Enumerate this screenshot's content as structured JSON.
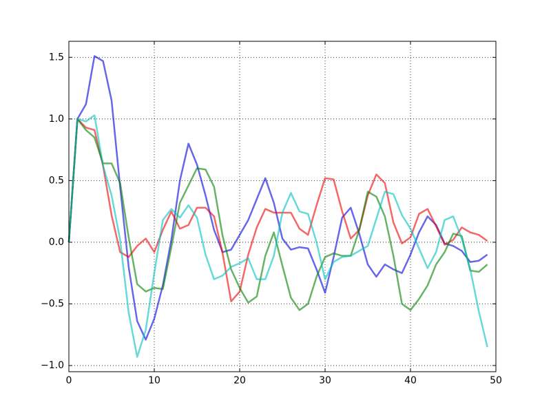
{
  "chart_data": {
    "type": "line",
    "x": [
      0,
      1,
      2,
      3,
      4,
      5,
      6,
      7,
      8,
      9,
      10,
      11,
      12,
      13,
      14,
      15,
      16,
      17,
      18,
      19,
      20,
      21,
      22,
      23,
      24,
      25,
      26,
      27,
      28,
      29,
      30,
      31,
      32,
      33,
      34,
      35,
      36,
      37,
      38,
      39,
      40,
      41,
      42,
      43,
      44,
      45,
      46,
      47,
      48,
      49
    ],
    "series": [
      {
        "color": "#0000dd",
        "values": [
          0,
          1.0,
          1.12,
          1.51,
          1.47,
          1.15,
          0.45,
          -0.2,
          -0.64,
          -0.79,
          -0.62,
          -0.35,
          0.02,
          0.5,
          0.8,
          0.63,
          0.38,
          0.1,
          -0.08,
          -0.06,
          0.06,
          0.18,
          0.35,
          0.52,
          0.32,
          0.03,
          -0.06,
          -0.04,
          -0.05,
          -0.22,
          -0.41,
          -0.12,
          0.2,
          0.28,
          0.07,
          -0.18,
          -0.28,
          -0.18,
          -0.22,
          -0.25,
          -0.1,
          0.08,
          0.21,
          0.14,
          -0.01,
          -0.03,
          -0.07,
          -0.16,
          -0.15,
          -0.1
        ]
      },
      {
        "color": "#ee0000",
        "values": [
          0,
          1.0,
          0.93,
          0.91,
          0.62,
          0.22,
          -0.08,
          -0.12,
          -0.03,
          0.03,
          -0.08,
          0.1,
          0.25,
          0.11,
          0.14,
          0.28,
          0.28,
          0.21,
          -0.09,
          -0.48,
          -0.4,
          -0.1,
          0.12,
          0.27,
          0.24,
          0.24,
          0.24,
          0.11,
          0.06,
          0.3,
          0.52,
          0.51,
          0.25,
          0.03,
          0.1,
          0.38,
          0.55,
          0.48,
          0.16,
          -0.01,
          0.04,
          0.23,
          0.27,
          0.13,
          -0.02,
          0.02,
          0.12,
          0.08,
          0.06,
          0.01
        ]
      },
      {
        "color": "#008000",
        "values": [
          0,
          1.0,
          0.91,
          0.85,
          0.64,
          0.64,
          0.48,
          0.04,
          -0.34,
          -0.4,
          -0.37,
          -0.38,
          -0.04,
          0.32,
          0.46,
          0.6,
          0.59,
          0.45,
          0.05,
          -0.22,
          -0.37,
          -0.49,
          -0.44,
          -0.11,
          0.08,
          -0.19,
          -0.45,
          -0.55,
          -0.5,
          -0.28,
          -0.12,
          -0.09,
          -0.11,
          -0.11,
          0.1,
          0.41,
          0.37,
          0.21,
          -0.11,
          -0.5,
          -0.55,
          -0.46,
          -0.35,
          -0.18,
          -0.08,
          0.07,
          0.05,
          -0.23,
          -0.24,
          -0.18
        ]
      },
      {
        "color": "#00c0bf",
        "values": [
          0,
          1.0,
          0.98,
          1.03,
          0.62,
          0.38,
          0.02,
          -0.57,
          -0.93,
          -0.71,
          -0.25,
          0.18,
          0.27,
          0.2,
          0.3,
          0.2,
          -0.1,
          -0.3,
          -0.27,
          -0.2,
          -0.17,
          -0.13,
          -0.3,
          -0.3,
          -0.11,
          0.24,
          0.4,
          0.25,
          0.23,
          0.0,
          -0.3,
          -0.16,
          -0.12,
          -0.11,
          -0.07,
          -0.03,
          0.19,
          0.41,
          0.39,
          0.22,
          0.11,
          -0.05,
          -0.21,
          -0.08,
          0.18,
          0.21,
          0.03,
          -0.22,
          -0.56,
          -0.85
        ]
      }
    ],
    "xlim": [
      0,
      50
    ],
    "xticks": [
      0,
      10,
      20,
      30,
      40,
      50
    ],
    "ylim": [
      -1.05,
      1.63
    ],
    "yticks": [
      {
        "value": -1.0,
        "label": "−1.0"
      },
      {
        "value": -0.5,
        "label": "−0.5"
      },
      {
        "value": 0.0,
        "label": "0.0"
      },
      0.5,
      {
        "value": 1.0,
        "label": "1.0"
      },
      1.5
    ],
    "grid": true
  }
}
